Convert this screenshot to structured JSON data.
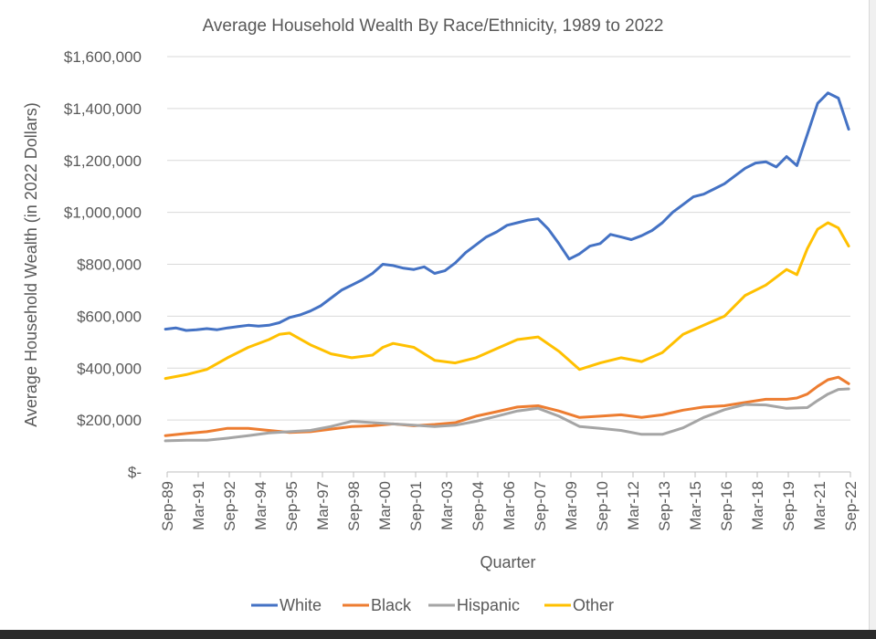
{
  "chart_data": {
    "type": "line",
    "title": "Average Household Wealth By Race/Ethnicity, 1989 to 2022",
    "xlabel": "Quarter",
    "ylabel": "Average Household Wealth (in 2022 Dollars)",
    "ylim": [
      0,
      1600000
    ],
    "y_ticks": [
      0,
      200000,
      400000,
      600000,
      800000,
      1000000,
      1200000,
      1400000,
      1600000
    ],
    "y_tick_labels": [
      "$-",
      "$200,000",
      "$400,000",
      "$600,000",
      "$800,000",
      "$1,000,000",
      "$1,200,000",
      "$1,400,000",
      "$1,600,000"
    ],
    "x_tick_labels": [
      "Sep-89",
      "Mar-91",
      "Sep-92",
      "Mar-94",
      "Sep-95",
      "Mar-97",
      "Sep-98",
      "Mar-00",
      "Sep-01",
      "Mar-03",
      "Sep-04",
      "Mar-06",
      "Sep-07",
      "Mar-09",
      "Sep-10",
      "Mar-12",
      "Sep-13",
      "Mar-15",
      "Sep-16",
      "Mar-18",
      "Sep-19",
      "Mar-21",
      "Sep-22"
    ],
    "grid": true,
    "legend_position": "bottom",
    "series": [
      {
        "name": "White",
        "color": "#4472C4",
        "points": [
          [
            "1989-09",
            550000
          ],
          [
            "1990-03",
            555000
          ],
          [
            "1990-09",
            545000
          ],
          [
            "1991-03",
            548000
          ],
          [
            "1991-09",
            552000
          ],
          [
            "1992-03",
            548000
          ],
          [
            "1992-09",
            555000
          ],
          [
            "1993-03",
            560000
          ],
          [
            "1993-09",
            565000
          ],
          [
            "1994-03",
            562000
          ],
          [
            "1994-09",
            565000
          ],
          [
            "1995-03",
            575000
          ],
          [
            "1995-09",
            595000
          ],
          [
            "1996-03",
            605000
          ],
          [
            "1996-09",
            620000
          ],
          [
            "1997-03",
            640000
          ],
          [
            "1997-09",
            670000
          ],
          [
            "1998-03",
            700000
          ],
          [
            "1998-09",
            720000
          ],
          [
            "1999-03",
            740000
          ],
          [
            "1999-09",
            765000
          ],
          [
            "2000-03",
            800000
          ],
          [
            "2000-09",
            795000
          ],
          [
            "2001-03",
            785000
          ],
          [
            "2001-09",
            780000
          ],
          [
            "2002-03",
            790000
          ],
          [
            "2002-09",
            765000
          ],
          [
            "2003-03",
            775000
          ],
          [
            "2003-09",
            805000
          ],
          [
            "2004-03",
            845000
          ],
          [
            "2004-09",
            875000
          ],
          [
            "2005-03",
            905000
          ],
          [
            "2005-09",
            925000
          ],
          [
            "2006-03",
            950000
          ],
          [
            "2006-09",
            960000
          ],
          [
            "2007-03",
            970000
          ],
          [
            "2007-09",
            975000
          ],
          [
            "2008-03",
            935000
          ],
          [
            "2008-09",
            880000
          ],
          [
            "2009-03",
            820000
          ],
          [
            "2009-09",
            840000
          ],
          [
            "2010-03",
            870000
          ],
          [
            "2010-09",
            880000
          ],
          [
            "2011-03",
            915000
          ],
          [
            "2011-09",
            905000
          ],
          [
            "2012-03",
            895000
          ],
          [
            "2012-09",
            910000
          ],
          [
            "2013-03",
            930000
          ],
          [
            "2013-09",
            960000
          ],
          [
            "2014-03",
            1000000
          ],
          [
            "2014-09",
            1030000
          ],
          [
            "2015-03",
            1060000
          ],
          [
            "2015-09",
            1070000
          ],
          [
            "2016-03",
            1090000
          ],
          [
            "2016-09",
            1110000
          ],
          [
            "2017-03",
            1140000
          ],
          [
            "2017-09",
            1170000
          ],
          [
            "2018-03",
            1190000
          ],
          [
            "2018-09",
            1195000
          ],
          [
            "2019-03",
            1175000
          ],
          [
            "2019-09",
            1215000
          ],
          [
            "2020-03",
            1180000
          ],
          [
            "2020-09",
            1300000
          ],
          [
            "2021-03",
            1420000
          ],
          [
            "2021-09",
            1460000
          ],
          [
            "2022-03",
            1440000
          ],
          [
            "2022-09",
            1320000
          ]
        ]
      },
      {
        "name": "Black",
        "color": "#ED7D31",
        "points": [
          [
            "1989-09",
            140000
          ],
          [
            "1990-09",
            148000
          ],
          [
            "1991-09",
            155000
          ],
          [
            "1992-09",
            168000
          ],
          [
            "1993-09",
            168000
          ],
          [
            "1994-09",
            160000
          ],
          [
            "1995-09",
            152000
          ],
          [
            "1996-09",
            155000
          ],
          [
            "1997-09",
            165000
          ],
          [
            "1998-09",
            175000
          ],
          [
            "1999-09",
            178000
          ],
          [
            "2000-09",
            185000
          ],
          [
            "2001-09",
            178000
          ],
          [
            "2002-09",
            183000
          ],
          [
            "2003-09",
            190000
          ],
          [
            "2004-09",
            215000
          ],
          [
            "2005-09",
            232000
          ],
          [
            "2006-09",
            250000
          ],
          [
            "2007-09",
            255000
          ],
          [
            "2008-09",
            235000
          ],
          [
            "2009-09",
            210000
          ],
          [
            "2010-09",
            215000
          ],
          [
            "2011-09",
            220000
          ],
          [
            "2012-09",
            210000
          ],
          [
            "2013-09",
            220000
          ],
          [
            "2014-09",
            238000
          ],
          [
            "2015-09",
            250000
          ],
          [
            "2016-09",
            255000
          ],
          [
            "2017-09",
            268000
          ],
          [
            "2018-09",
            280000
          ],
          [
            "2019-09",
            280000
          ],
          [
            "2020-03",
            285000
          ],
          [
            "2020-09",
            300000
          ],
          [
            "2021-03",
            330000
          ],
          [
            "2021-09",
            355000
          ],
          [
            "2022-03",
            365000
          ],
          [
            "2022-09",
            340000
          ]
        ]
      },
      {
        "name": "Hispanic",
        "color": "#A5A5A5",
        "points": [
          [
            "1989-09",
            120000
          ],
          [
            "1990-09",
            122000
          ],
          [
            "1991-09",
            122000
          ],
          [
            "1992-09",
            130000
          ],
          [
            "1993-09",
            140000
          ],
          [
            "1994-09",
            150000
          ],
          [
            "1995-09",
            155000
          ],
          [
            "1996-09",
            160000
          ],
          [
            "1997-09",
            175000
          ],
          [
            "1998-09",
            195000
          ],
          [
            "1999-09",
            190000
          ],
          [
            "2000-09",
            185000
          ],
          [
            "2001-09",
            180000
          ],
          [
            "2002-09",
            175000
          ],
          [
            "2003-09",
            180000
          ],
          [
            "2004-09",
            195000
          ],
          [
            "2005-09",
            215000
          ],
          [
            "2006-09",
            235000
          ],
          [
            "2007-09",
            245000
          ],
          [
            "2008-09",
            215000
          ],
          [
            "2009-09",
            175000
          ],
          [
            "2010-09",
            168000
          ],
          [
            "2011-09",
            160000
          ],
          [
            "2012-09",
            145000
          ],
          [
            "2013-09",
            145000
          ],
          [
            "2014-09",
            170000
          ],
          [
            "2015-09",
            210000
          ],
          [
            "2016-09",
            240000
          ],
          [
            "2017-09",
            260000
          ],
          [
            "2018-09",
            258000
          ],
          [
            "2019-09",
            245000
          ],
          [
            "2020-09",
            248000
          ],
          [
            "2021-03",
            275000
          ],
          [
            "2021-09",
            300000
          ],
          [
            "2022-03",
            318000
          ],
          [
            "2022-09",
            320000
          ]
        ]
      },
      {
        "name": "Other",
        "color": "#FFC000",
        "points": [
          [
            "1989-09",
            360000
          ],
          [
            "1990-09",
            375000
          ],
          [
            "1991-09",
            395000
          ],
          [
            "1992-09",
            440000
          ],
          [
            "1993-09",
            480000
          ],
          [
            "1994-09",
            510000
          ],
          [
            "1995-03",
            530000
          ],
          [
            "1995-09",
            535000
          ],
          [
            "1996-09",
            490000
          ],
          [
            "1997-09",
            455000
          ],
          [
            "1998-09",
            440000
          ],
          [
            "1999-09",
            450000
          ],
          [
            "2000-03",
            480000
          ],
          [
            "2000-09",
            495000
          ],
          [
            "2001-09",
            480000
          ],
          [
            "2002-09",
            430000
          ],
          [
            "2003-09",
            420000
          ],
          [
            "2004-09",
            440000
          ],
          [
            "2005-09",
            475000
          ],
          [
            "2006-09",
            510000
          ],
          [
            "2007-09",
            520000
          ],
          [
            "2008-09",
            465000
          ],
          [
            "2009-09",
            395000
          ],
          [
            "2010-09",
            420000
          ],
          [
            "2011-09",
            440000
          ],
          [
            "2012-09",
            425000
          ],
          [
            "2013-09",
            460000
          ],
          [
            "2014-09",
            530000
          ],
          [
            "2015-09",
            565000
          ],
          [
            "2016-09",
            600000
          ],
          [
            "2017-09",
            680000
          ],
          [
            "2018-09",
            720000
          ],
          [
            "2019-09",
            780000
          ],
          [
            "2020-03",
            760000
          ],
          [
            "2020-09",
            860000
          ],
          [
            "2021-03",
            935000
          ],
          [
            "2021-09",
            960000
          ],
          [
            "2022-03",
            940000
          ],
          [
            "2022-09",
            870000
          ]
        ]
      }
    ]
  }
}
